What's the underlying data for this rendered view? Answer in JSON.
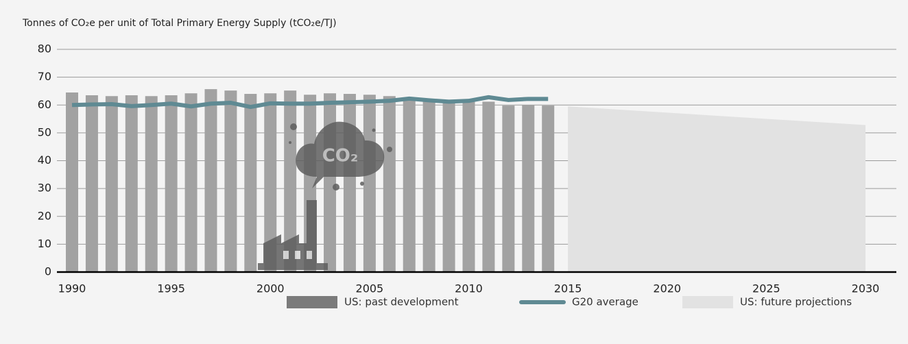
{
  "chart_data": {
    "type": "bar",
    "title": "Tonnes of CO₂e per unit of Total Primary Energy Supply (tCO₂e/TJ)",
    "annotation": "CO₂",
    "xlim": [
      1990,
      2030
    ],
    "xticks": [
      1990,
      1995,
      2000,
      2005,
      2010,
      2015,
      2020,
      2025,
      2030
    ],
    "ylim": [
      0,
      80
    ],
    "yticks": [
      0,
      10,
      20,
      30,
      40,
      50,
      60,
      70,
      80
    ],
    "grid": true,
    "legend": "bottom",
    "series": [
      {
        "name": "US: past development",
        "type": "bar",
        "color": "#a2a2a2",
        "legend_color": "#7b7b7b",
        "x": [
          1990,
          1991,
          1992,
          1993,
          1994,
          1995,
          1996,
          1997,
          1998,
          1999,
          2000,
          2001,
          2002,
          2003,
          2004,
          2005,
          2006,
          2007,
          2008,
          2009,
          2010,
          2011,
          2012,
          2013,
          2014
        ],
        "values": [
          64.5,
          63.5,
          63.2,
          63.5,
          63.2,
          63.5,
          64.2,
          65.7,
          65.2,
          64,
          64.2,
          65.2,
          63.7,
          64.2,
          64,
          63.7,
          63.2,
          62.5,
          61.5,
          60.8,
          61.2,
          61.2,
          59.8,
          60,
          59.8
        ]
      },
      {
        "name": "G20 average",
        "type": "line",
        "color": "#5f8a93",
        "x": [
          1990,
          1991,
          1992,
          1993,
          1994,
          1995,
          1996,
          1997,
          1998,
          1999,
          2000,
          2001,
          2002,
          2003,
          2004,
          2005,
          2006,
          2007,
          2008,
          2009,
          2010,
          2011,
          2012,
          2013,
          2014
        ],
        "values": [
          60,
          60.2,
          60.3,
          59.6,
          60,
          60.5,
          59.5,
          60.5,
          60.8,
          59.3,
          60.6,
          60.5,
          60.5,
          60.8,
          61,
          61.2,
          61.5,
          62.3,
          61.7,
          61.2,
          61.5,
          62.8,
          61.8,
          62.2,
          62.2
        ]
      },
      {
        "name": "US: future projections",
        "type": "area",
        "color": "#e2e2e2",
        "x": [
          2015,
          2030
        ],
        "values": [
          59.5,
          52.8
        ]
      }
    ]
  }
}
